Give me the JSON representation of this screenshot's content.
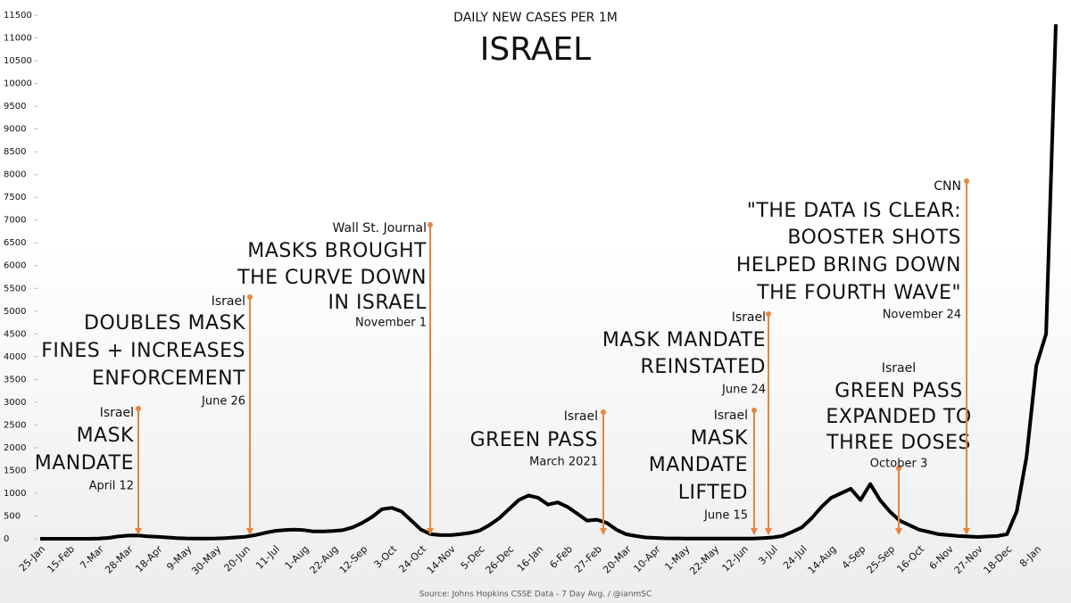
{
  "chart_data": {
    "type": "line",
    "title": "DAILY NEW CASES PER 1M",
    "subtitle": "ISRAEL",
    "source": "Source: Johns Hopkins CSSE Data - 7 Day Avg. / @ianmSC",
    "categories": [
      "25-Jan",
      null,
      null,
      "15-Feb",
      null,
      null,
      "7-Mar",
      null,
      null,
      "28-Mar",
      null,
      null,
      "18-Apr",
      null,
      null,
      "9-May",
      null,
      null,
      "30-May",
      null,
      null,
      "20-Jun",
      null,
      null,
      "11-Jul",
      null,
      null,
      "1-Aug",
      null,
      null,
      "22-Aug",
      null,
      null,
      "12-Sep",
      null,
      null,
      "3-Oct",
      null,
      null,
      "24-Oct",
      null,
      null,
      "14-Nov",
      null,
      null,
      "5-Dec",
      null,
      null,
      "26-Dec",
      null,
      null,
      "16-Jan",
      null,
      null,
      "6-Feb",
      null,
      null,
      "27-Feb",
      null,
      null,
      "20-Mar",
      null,
      null,
      "10-Apr",
      null,
      null,
      "1-May",
      null,
      null,
      "22-May",
      null,
      null,
      "12-Jun",
      null,
      null,
      "3-Jul",
      null,
      null,
      "24-Jul",
      null,
      null,
      "14-Aug",
      null,
      null,
      "4-Sep",
      null,
      null,
      "25-Sep",
      null,
      null,
      "16-Oct",
      null,
      null,
      "6-Nov",
      null,
      null,
      "27-Nov",
      null,
      null,
      "18-Dec",
      null,
      null,
      "8-Jan",
      null,
      null
    ],
    "series": [
      {
        "name": "Israel",
        "color": "#000000",
        "values": [
          0,
          0,
          0,
          0,
          0,
          0,
          5,
          20,
          50,
          70,
          75,
          55,
          45,
          30,
          15,
          8,
          5,
          5,
          8,
          15,
          30,
          45,
          80,
          130,
          170,
          190,
          200,
          190,
          160,
          160,
          170,
          190,
          250,
          350,
          480,
          650,
          680,
          600,
          400,
          200,
          100,
          80,
          80,
          100,
          130,
          180,
          300,
          450,
          650,
          850,
          950,
          900,
          750,
          800,
          700,
          550,
          400,
          420,
          350,
          200,
          100,
          60,
          30,
          20,
          10,
          8,
          5,
          5,
          3,
          3,
          3,
          3,
          3,
          5,
          15,
          30,
          60,
          150,
          250,
          450,
          700,
          900,
          1000,
          1100,
          850,
          1200,
          850,
          600,
          400,
          300,
          200,
          150,
          100,
          80,
          60,
          50,
          40,
          50,
          60,
          100,
          600,
          1800,
          3800,
          4500,
          11300
        ]
      }
    ],
    "ylim": [
      0,
      11500
    ],
    "yticks": [
      0,
      500,
      1000,
      1500,
      2000,
      2500,
      3000,
      3500,
      4000,
      4500,
      5000,
      5500,
      6000,
      6500,
      7000,
      7500,
      8000,
      8500,
      9000,
      9500,
      10000,
      10500,
      11000,
      11500
    ],
    "annotation_color": "#e8843c",
    "annotations": [
      {
        "source": "Israel",
        "text": [
          "MASK",
          "MANDATE"
        ],
        "date": "April 12"
      },
      {
        "source": "Israel",
        "text": [
          "DOUBLES MASK",
          "FINES + INCREASES",
          "ENFORCEMENT"
        ],
        "date": "June 26"
      },
      {
        "source": "Wall St. Journal",
        "text": [
          "MASKS BROUGHT",
          "THE CURVE DOWN",
          "IN ISRAEL"
        ],
        "date": "November 1"
      },
      {
        "source": "Israel",
        "text": [
          "GREEN PASS"
        ],
        "date": "March 2021"
      },
      {
        "source": "Israel",
        "text": [
          "MASK",
          "MANDATE",
          "LIFTED"
        ],
        "date": "June 15"
      },
      {
        "source": "Israel",
        "text": [
          "MASK MANDATE",
          "REINSTATED"
        ],
        "date": "June 24"
      },
      {
        "source": "Israel",
        "text": [
          "GREEN PASS",
          "EXPANDED TO",
          "THREE DOSES"
        ],
        "date": "October 3"
      },
      {
        "source": "CNN",
        "text": [
          "\"THE DATA IS CLEAR:",
          "BOOSTER SHOTS",
          "HELPED BRING DOWN",
          "THE FOURTH WAVE\""
        ],
        "date": "November 24"
      }
    ]
  }
}
